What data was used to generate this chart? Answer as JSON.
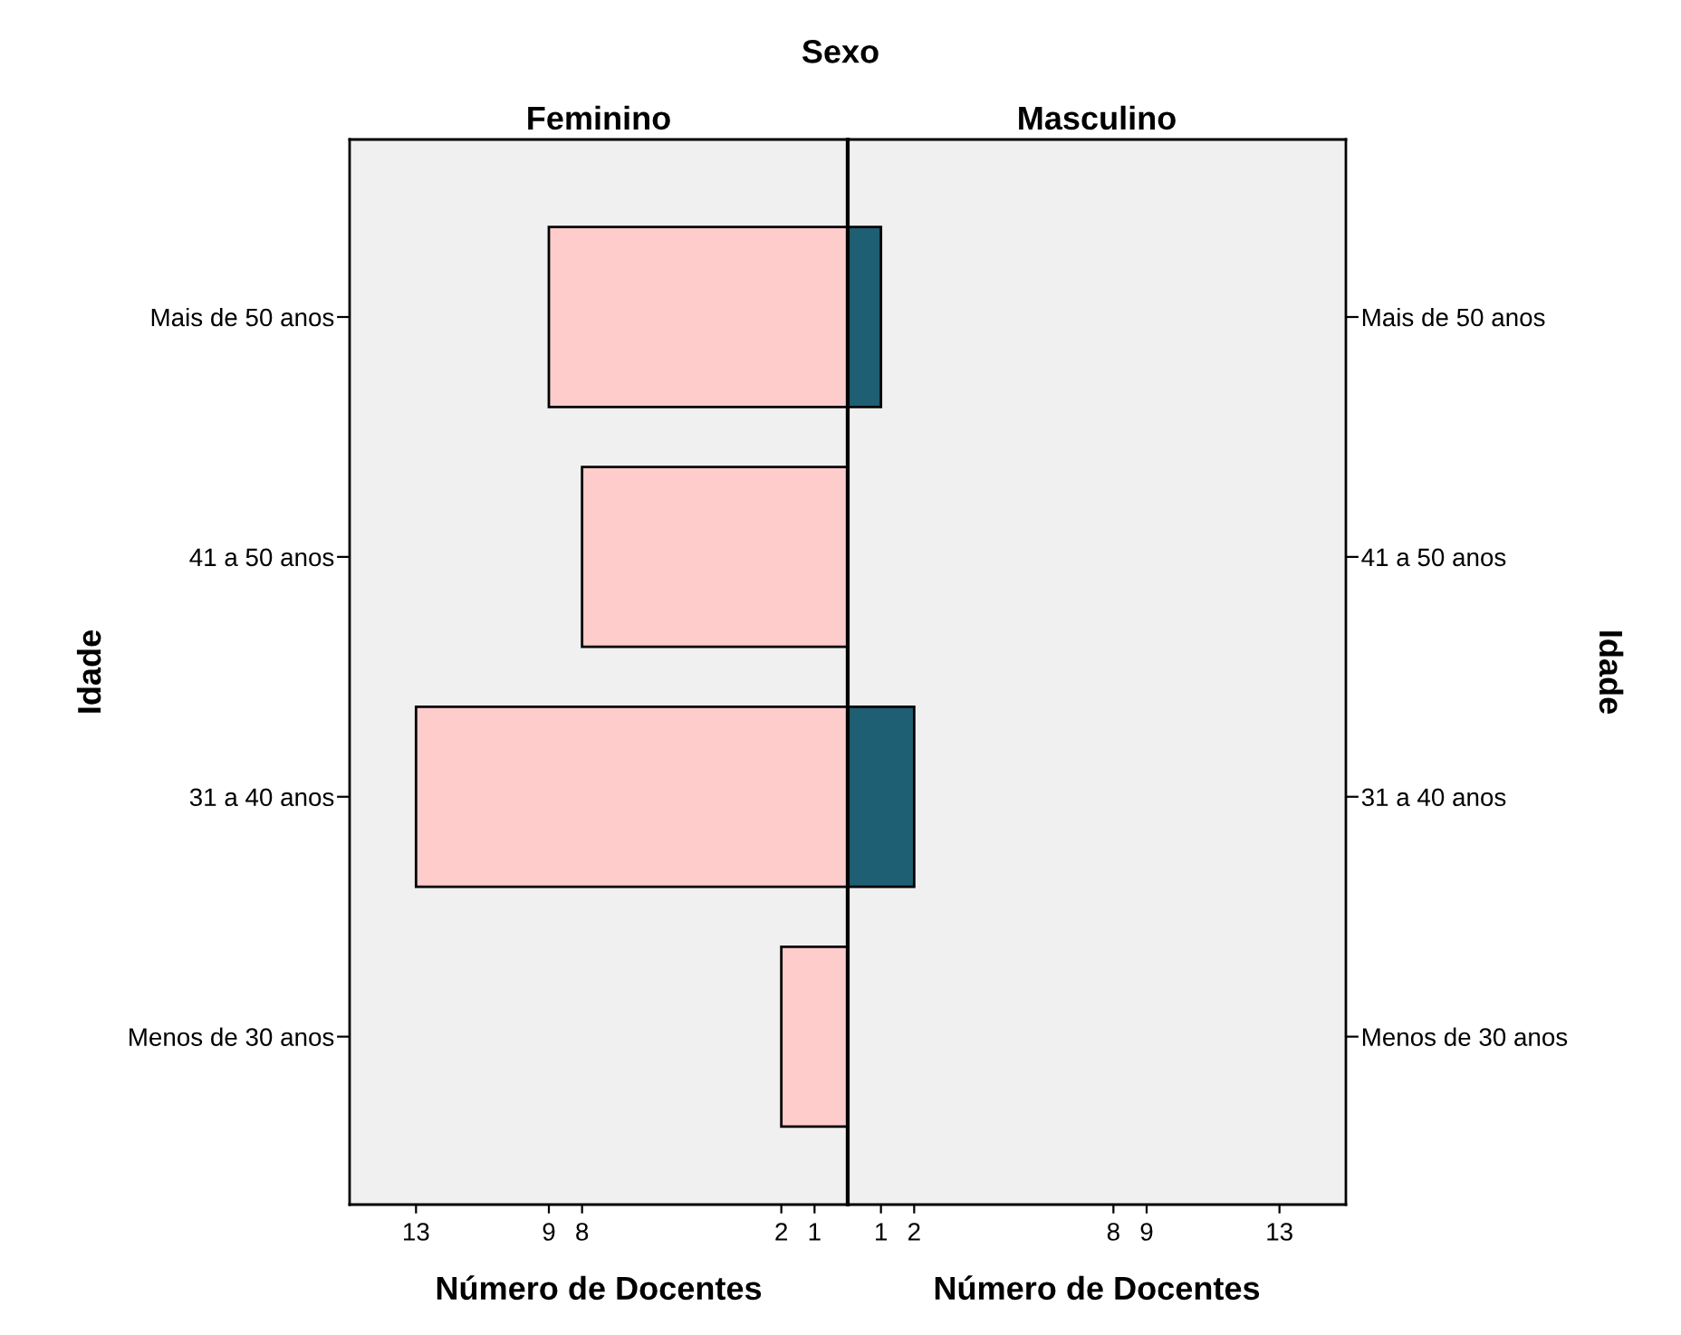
{
  "chart_data": [
    {
      "type": "bar",
      "orientation": "horizontal",
      "title": "Feminino",
      "xlabel": "Número de Docentes",
      "ylabel": "Idade",
      "annotations": [
        "Sexo"
      ],
      "categories": [
        "Mais de 50 anos",
        "41 a 50 anos",
        "31 a 40 anos",
        "Menos de 30 anos"
      ],
      "series": [
        {
          "color": "#ffcccc",
          "values": [
            9,
            8,
            13,
            2
          ]
        }
      ],
      "xlim": [
        15,
        0
      ],
      "xticks": [
        13,
        9,
        8,
        2,
        1
      ],
      "grid": false,
      "legend": false
    },
    {
      "type": "bar",
      "orientation": "horizontal",
      "title": "Masculino",
      "xlabel": "Número de Docentes",
      "ylabel": "Idade",
      "categories": [
        "Mais de 50 anos",
        "41 a 50 anos",
        "31 a 40 anos",
        "Menos de 30 anos"
      ],
      "series": [
        {
          "color": "#1f5f74",
          "values": [
            1,
            null,
            2,
            null
          ]
        }
      ],
      "xlim": [
        0,
        15
      ],
      "xticks": [
        1,
        2,
        8,
        9,
        13
      ],
      "grid": false,
      "legend": false
    }
  ]
}
